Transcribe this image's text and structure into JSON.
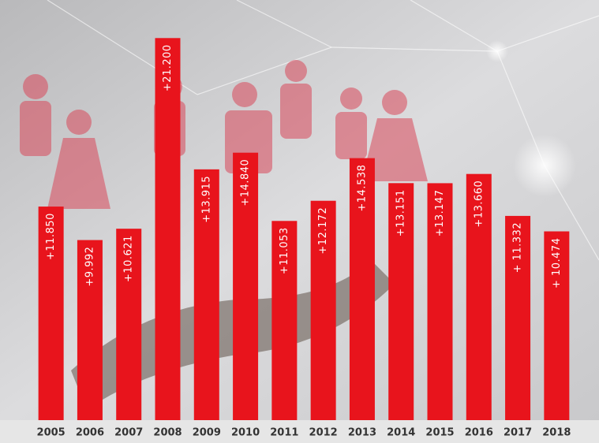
{
  "chart_data": {
    "type": "bar",
    "categories": [
      "2005",
      "2006",
      "2007",
      "2008",
      "2009",
      "2010",
      "2011",
      "2012",
      "2013",
      "2014",
      "2015",
      "2016",
      "2017",
      "2018"
    ],
    "values": [
      11850,
      9992,
      10621,
      21200,
      13915,
      14840,
      11053,
      12172,
      14538,
      13151,
      13147,
      13660,
      11332,
      10474
    ],
    "value_labels": [
      "+11.850",
      "+9.992",
      "+10.621",
      "+21.200",
      "+13.915",
      "+14.840",
      "+11.053",
      "+12.172",
      "+14.538",
      "+13.151",
      "+13.147",
      "+13.660",
      "+ 11.332",
      "+ 10.474"
    ],
    "color": "#e8141c",
    "ylim": [
      0,
      22000
    ]
  }
}
